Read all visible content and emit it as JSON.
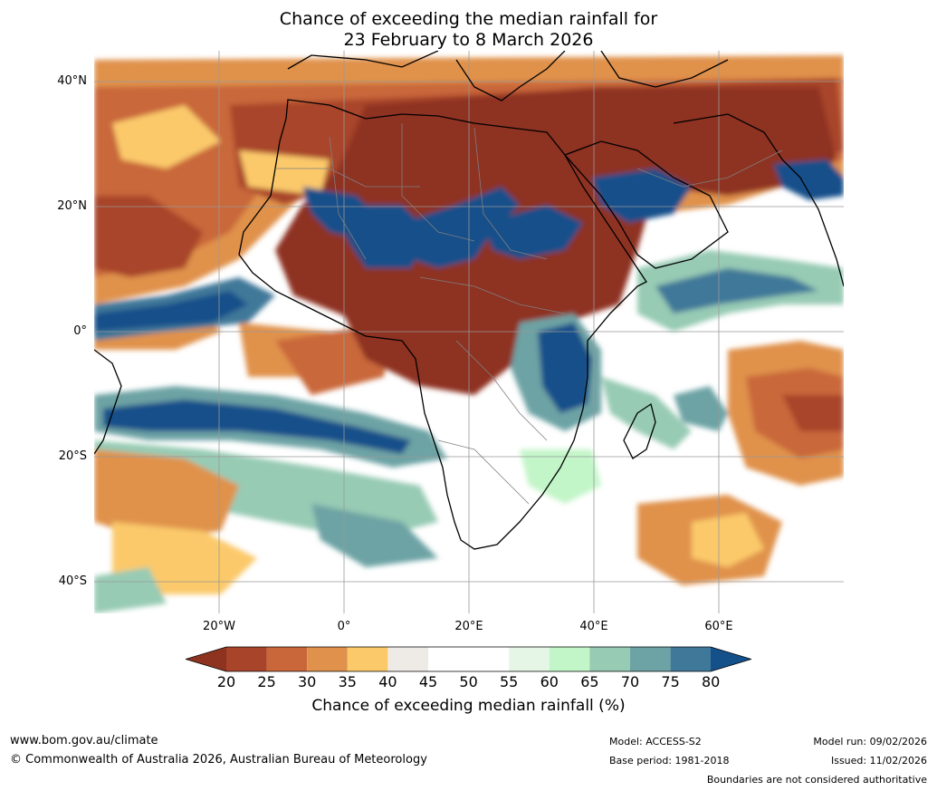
{
  "title_line1": "Chance of exceeding the median rainfall for",
  "title_line2": "23 February to 8 March 2026",
  "lat_labels": [
    "40°N",
    "20°N",
    "0°",
    "20°S",
    "40°S"
  ],
  "lon_labels": [
    "20°W",
    "0°",
    "20°E",
    "40°E",
    "60°E"
  ],
  "colorbar": {
    "ticks": [
      "20",
      "25",
      "30",
      "35",
      "40",
      "45",
      "50",
      "55",
      "60",
      "65",
      "70",
      "75",
      "80"
    ],
    "colors": [
      "#8e3320",
      "#a8442a",
      "#c9673a",
      "#e0924c",
      "#fbc96a",
      "#eeebe6",
      "#ffffff",
      "#ffffff",
      "#e5f5e6",
      "#c2f5c8",
      "#97cbb4",
      "#6da3a4",
      "#3f7899",
      "#14508a"
    ],
    "label": "Chance of exceeding median rainfall (%)"
  },
  "footer": {
    "website": "www.bom.gov.au/climate",
    "copyright": "© Commonwealth of Australia 2026, Australian Bureau of Meteorology",
    "model": "Model: ACCESS-S2",
    "base_period": "Base period: 1981-2018",
    "model_run": "Model run: 09/02/2026",
    "issued": "Issued: 11/02/2026",
    "disclaimer": "Boundaries are not considered authoritative"
  }
}
